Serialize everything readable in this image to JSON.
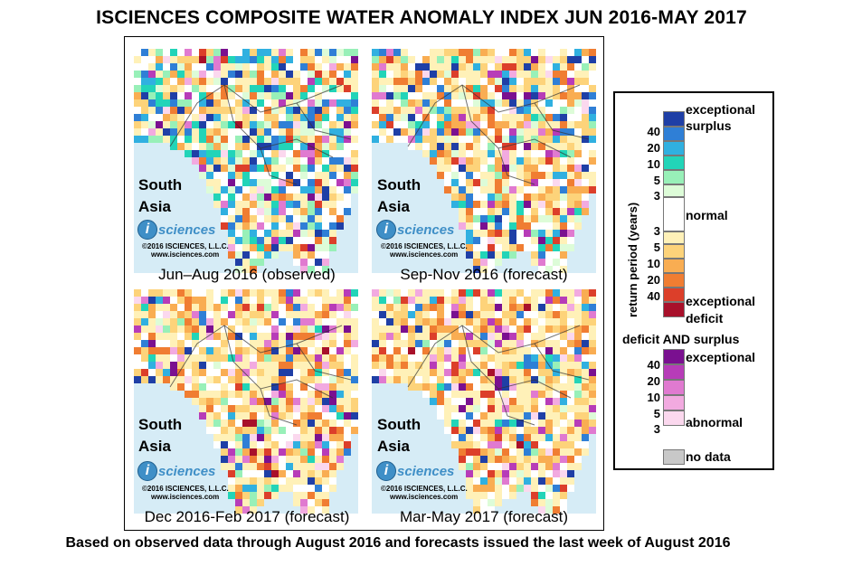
{
  "title": "ISCIENCES COMPOSITE WATER ANOMALY INDEX JUN 2016-MAY 2017",
  "subtitle": "Based on observed data through August 2016 and forecasts issued the last week of August 2016",
  "panels": [
    {
      "region_line1": "South",
      "region_line2": "Asia",
      "logo_letter": "i",
      "logo_text": "sciences",
      "copyright": "©2016  ISCIENCES, L.L.C.",
      "website": "www.isciences.com",
      "caption": "Jun–Aug 2016 (observed)",
      "dominant": "mixed-surplus"
    },
    {
      "region_line1": "South",
      "region_line2": "Asia",
      "logo_letter": "i",
      "logo_text": "sciences",
      "copyright": "©2016  ISCIENCES, L.L.C.",
      "website": "www.isciences.com",
      "caption": "Sep-Nov 2016 (forecast)",
      "dominant": "mixed"
    },
    {
      "region_line1": "South",
      "region_line2": "Asia",
      "logo_letter": "i",
      "logo_text": "sciences",
      "copyright": "©2016  ISCIENCES, L.L.C.",
      "website": "www.isciences.com",
      "caption": "Dec 2016-Feb 2017 (forecast)",
      "dominant": "deficit"
    },
    {
      "region_line1": "South",
      "region_line2": "Asia",
      "logo_letter": "i",
      "logo_text": "sciences",
      "copyright": "©2016  ISCIENCES, L.L.C.",
      "website": "www.isciences.com",
      "caption": "Mar-May 2017 (forecast)",
      "dominant": "deficit"
    }
  ],
  "legend": {
    "axis_label": "return period (years)",
    "surplus_label_1": "exceptional",
    "surplus_label_2": "surplus",
    "normal_label": "normal",
    "deficit_label_1": "exceptional",
    "deficit_label_2": "deficit",
    "both_heading": "deficit AND surplus",
    "both_top_label": "exceptional",
    "both_bottom_label": "abnormal",
    "no_data_label": "no data",
    "surplus_ticks": [
      "40",
      "20",
      "10",
      "5",
      "3"
    ],
    "deficit_ticks": [
      "3",
      "5",
      "10",
      "20",
      "40"
    ],
    "both_ticks": [
      "40",
      "20",
      "10",
      "5",
      "3"
    ],
    "colors": {
      "surplus": [
        "#1f3fa6",
        "#2f7fd6",
        "#30b0e0",
        "#22d4b8",
        "#98f0b8",
        "#ddfcd8"
      ],
      "normal": "#ffffff",
      "deficit": [
        "#fff1b8",
        "#fdd37a",
        "#f9ad52",
        "#f07d32",
        "#dc3f2a",
        "#a8102a"
      ],
      "both": [
        "#7a1090",
        "#b73cb8",
        "#e07ad0",
        "#f2aae0",
        "#fbd8ee"
      ],
      "no_data": "#c8c8c8",
      "ocean": "#d6ecf6",
      "logo_blue": "#3f8fc7"
    }
  }
}
